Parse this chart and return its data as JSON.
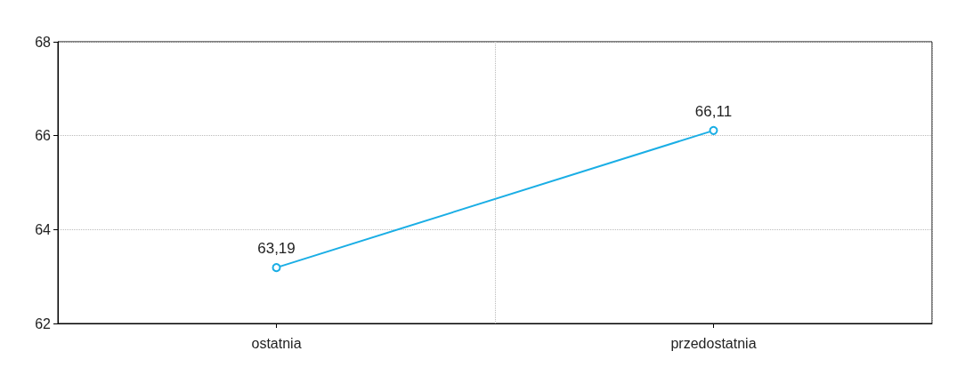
{
  "chart_data": {
    "type": "line",
    "categories": [
      "ostatnia",
      "przedostatnia"
    ],
    "series": [
      {
        "color": "#1aaee5",
        "values": [
          63.19,
          66.11
        ],
        "value_labels": [
          "63,19",
          "66,11"
        ]
      }
    ],
    "ylim": [
      62,
      68
    ],
    "yticks": [
      62,
      64,
      66,
      68
    ],
    "grid": true,
    "marker": "circle",
    "line_style": "solid"
  }
}
